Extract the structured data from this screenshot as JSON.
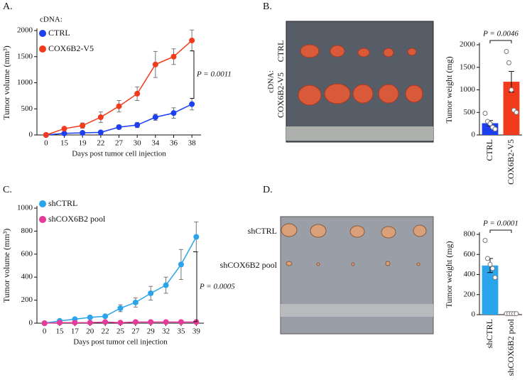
{
  "panel_labels": [
    "A.",
    "B.",
    "C.",
    "D."
  ],
  "photos": [
    {
      "group_label": "cDNA:",
      "row_labels": [
        "CTRL",
        "COX6B2-V5"
      ]
    },
    {
      "row_labels": [
        "shCTRL",
        "shCOX6B2 pool"
      ]
    }
  ],
  "chart_data": [
    {
      "type": "line",
      "xlabel": "Days post tumor cell injection",
      "ylabel": "Tumor volume (mm³)",
      "categories": [
        "0",
        "15",
        "19",
        "22",
        "27",
        "30",
        "34",
        "36",
        "38"
      ],
      "legend_title": "cDNA:",
      "legend": "upper-left",
      "annotation": "P = 0.0011",
      "series": [
        {
          "name": "CTRL",
          "color": "#1c3ff0",
          "values": [
            0,
            30,
            40,
            50,
            150,
            190,
            340,
            420,
            590
          ],
          "errors": [
            0,
            10,
            10,
            15,
            40,
            50,
            60,
            100,
            110
          ]
        },
        {
          "name": "COX6B2-V5",
          "color": "#f23a1d",
          "values": [
            0,
            120,
            180,
            340,
            550,
            790,
            1350,
            1500,
            1810
          ],
          "errors": [
            0,
            30,
            50,
            100,
            110,
            130,
            250,
            150,
            200
          ]
        }
      ],
      "ylim": [
        0,
        2000
      ],
      "yticks": [
        0,
        500,
        1000,
        1500,
        2000
      ]
    },
    {
      "type": "bar",
      "ylabel": "Tumor weight (mg)",
      "annotation": "P = 0.0046",
      "categories": [
        "CTRL",
        "COX6B2-V5"
      ],
      "colors": [
        "#1c3ff0",
        "#f23a1d"
      ],
      "values": [
        260,
        1180
      ],
      "errors": [
        60,
        230
      ],
      "points": [
        [
          480,
          300,
          250,
          170,
          130
        ],
        [
          1850,
          1600,
          1000,
          550,
          500
        ]
      ],
      "ylim": [
        0,
        2000
      ],
      "yticks": [
        0,
        500,
        1000,
        1500,
        2000
      ]
    },
    {
      "type": "line",
      "xlabel": "Days post tumor cell injection",
      "ylabel": "Tumor volume (mm³)",
      "categories": [
        "0",
        "15",
        "17",
        "20",
        "22",
        "25",
        "27",
        "29",
        "32",
        "35",
        "39"
      ],
      "legend": "upper-left",
      "annotation": "P = 0.0005",
      "series": [
        {
          "name": "shCTRL",
          "color": "#2aa4ea",
          "values": [
            0,
            20,
            35,
            50,
            60,
            130,
            180,
            260,
            330,
            510,
            750
          ],
          "errors": [
            0,
            5,
            8,
            10,
            10,
            30,
            40,
            60,
            70,
            130,
            130
          ]
        },
        {
          "name": "shCOX6B2 pool",
          "color": "#e6399a",
          "values": [
            0,
            5,
            5,
            5,
            10,
            5,
            10,
            10,
            10,
            10,
            10
          ],
          "errors": [
            0,
            2,
            2,
            2,
            3,
            2,
            3,
            3,
            3,
            3,
            3
          ]
        }
      ],
      "ylim": [
        0,
        1000
      ],
      "yticks": [
        0,
        200,
        400,
        600,
        800,
        1000
      ]
    },
    {
      "type": "bar",
      "ylabel": "Tumor weight (mg)",
      "annotation": "P = 0.0001",
      "categories": [
        "shCTRL",
        "shCOX6B2 pool"
      ],
      "colors": [
        "#2aa4ea",
        "#e6399a"
      ],
      "values": [
        490,
        10
      ],
      "errors": [
        70,
        3
      ],
      "points": [
        [
          740,
          560,
          500,
          460,
          370
        ],
        [
          10,
          10,
          10,
          10,
          10
        ]
      ],
      "ylim": [
        0,
        800
      ],
      "yticks": [
        0,
        200,
        400,
        600,
        800
      ]
    }
  ]
}
